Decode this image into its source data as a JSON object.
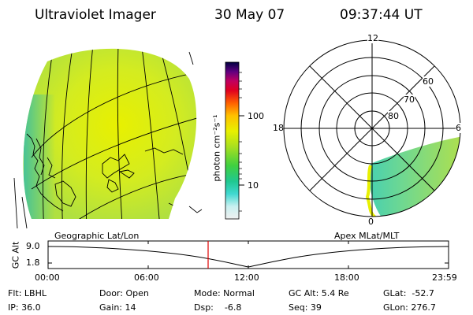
{
  "header": {
    "title": "Ultraviolet Imager",
    "date": "30 May 07",
    "time": "09:37:44 UT"
  },
  "colorbar": {
    "unit_label": "photon cm⁻²s⁻¹",
    "ticks": [
      "100",
      "10"
    ]
  },
  "map_labels": {
    "left": "Geographic Lat/Lon",
    "right": "Apex MLat/MLT"
  },
  "polar": {
    "mlt_labels": [
      "12",
      "18",
      "6",
      "0"
    ],
    "mlat_labels": [
      "60",
      "70",
      "80"
    ]
  },
  "gc_plot": {
    "ylabel": "GC Alt",
    "y_ticks": [
      "9.0",
      "1.8"
    ],
    "x_ticks": [
      "00:00",
      "06:00",
      "12:00",
      "18:00",
      "23:59"
    ],
    "marker_time": "09:37:44",
    "colors": {
      "marker": "#e00000"
    }
  },
  "info": {
    "filter": "Flt: LBHL",
    "ip": "IP: 36.0",
    "door": "Door: Open",
    "gain": "Gain: 14",
    "mode": "Mode: Normal",
    "dsp": "Dsp:    -6.8",
    "gc_alt": "GC Alt: 5.4 Re",
    "seq": "Seq: 39",
    "glat": "GLat:  -52.7",
    "glon": "GLon: 276.7"
  }
}
